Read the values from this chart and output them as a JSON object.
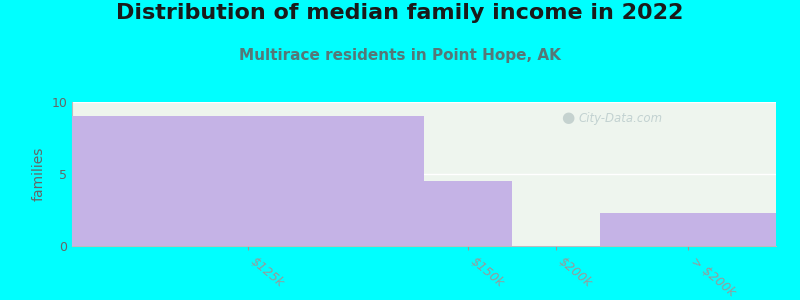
{
  "title": "Distribution of median family income in 2022",
  "subtitle": "Multirace residents in Point Hope, AK",
  "categories": [
    "$125k",
    "$150k",
    "$200k",
    "> $200k"
  ],
  "values": [
    9,
    4.5,
    0,
    2.3
  ],
  "bar_color": "#c5b3e6",
  "background_color": "#00ffff",
  "plot_bg_top": "#e8f5e9",
  "plot_bg_bottom": "#f5f5ff",
  "ylabel": "families",
  "ylim": [
    0,
    10
  ],
  "yticks": [
    0,
    5,
    10
  ],
  "watermark": "City-Data.com",
  "title_fontsize": 16,
  "subtitle_fontsize": 11,
  "subtitle_color": "#557777",
  "tick_label_color": "#666666",
  "ylabel_color": "#666666",
  "bar_edges": [
    0,
    0.5,
    0.625,
    0.75,
    1.0
  ]
}
